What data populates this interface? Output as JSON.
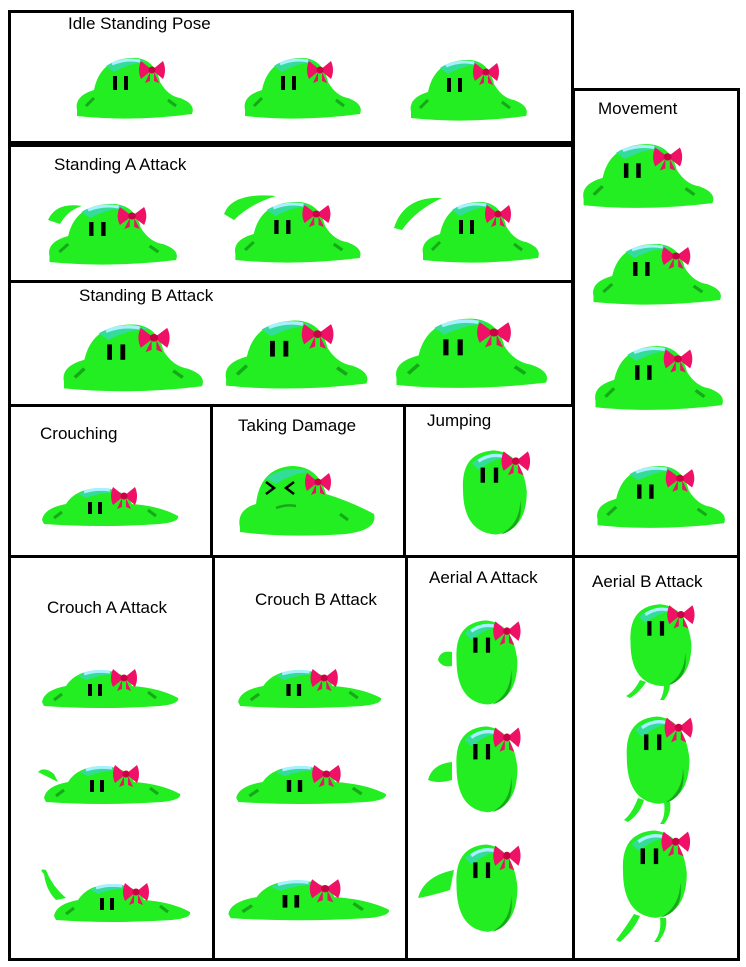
{
  "sheet": {
    "sections": [
      {
        "id": "idle",
        "label": "Idle Standing Pose"
      },
      {
        "id": "movement",
        "label": "Movement"
      },
      {
        "id": "standing-a",
        "label": "Standing A Attack"
      },
      {
        "id": "standing-b",
        "label": "Standing B Attack"
      },
      {
        "id": "crouching",
        "label": "Crouching"
      },
      {
        "id": "damage",
        "label": "Taking Damage"
      },
      {
        "id": "jumping",
        "label": "Jumping"
      },
      {
        "id": "crouch-a",
        "label": "Crouch A Attack"
      },
      {
        "id": "crouch-b",
        "label": "Crouch B Attack"
      },
      {
        "id": "aerial-a",
        "label": "Aerial A Attack"
      },
      {
        "id": "aerial-b",
        "label": "Aerial B Attack"
      }
    ],
    "colors": {
      "slime_body": "#22ee22",
      "slime_shadow": "#17a81a",
      "slime_highlight": "#33dd99",
      "slime_shine": "#a8f0ff",
      "bow": "#ee1166",
      "eyes": "#000000",
      "border": "#000000"
    }
  }
}
